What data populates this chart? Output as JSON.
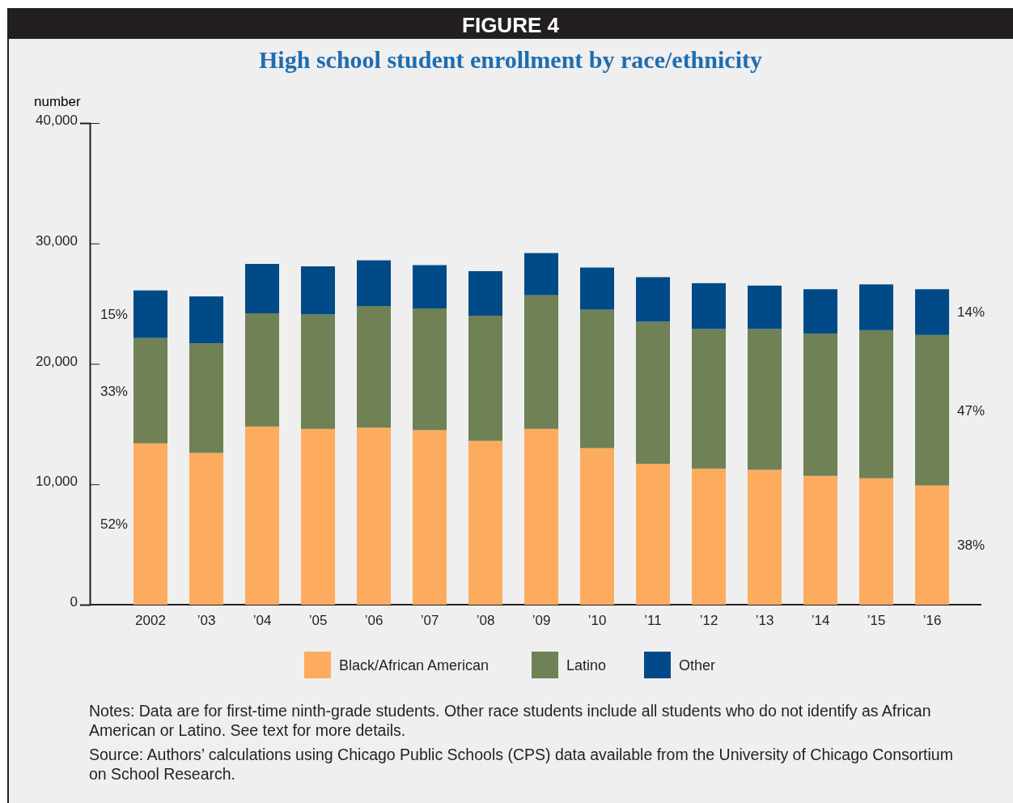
{
  "chart_data": {
    "type": "bar",
    "stacked": true,
    "subtitle": "FIGURE 4",
    "title": "High school student enrollment by race/ethnicity",
    "ylabel": "number",
    "categories": [
      "2002",
      "’03",
      "’04",
      "’05",
      "’06",
      "’07",
      "’08",
      "’09",
      "’10",
      "’11",
      "’12",
      "’13",
      "’14",
      "’15",
      "’16"
    ],
    "series": [
      {
        "name": "Black/African American",
        "color": "#fdac5f",
        "values": [
          13400,
          12600,
          14800,
          14600,
          14700,
          14500,
          13600,
          14600,
          13000,
          11700,
          11300,
          11200,
          10700,
          10500,
          9900
        ]
      },
      {
        "name": "Latino",
        "color": "#6f8155",
        "values": [
          8750,
          9100,
          9400,
          9500,
          10100,
          10100,
          10400,
          11100,
          11500,
          11800,
          11600,
          11700,
          11800,
          12300,
          12500
        ]
      },
      {
        "name": "Other",
        "color": "#004a87",
        "values": [
          3950,
          3900,
          4100,
          4000,
          3800,
          3600,
          3700,
          3500,
          3500,
          3700,
          3800,
          3600,
          3700,
          3800,
          3800
        ]
      }
    ],
    "ylim": [
      0,
      40000
    ],
    "yticks": [
      0,
      {
        "value": 10000,
        "label": "10,000"
      },
      {
        "value": 20000,
        "label": "20,000"
      },
      {
        "value": 30000,
        "label": "30,000"
      },
      {
        "value": 40000,
        "label": "40,000"
      }
    ],
    "grid": false,
    "legend": "bottom",
    "annotations": [
      "15%",
      "33%",
      "52%",
      "14%",
      "47%",
      "38%",
      "Notes: Data are for first-time ninth-grade students. Other race students include all students who do not identify as African American or Latino. See text for more details.",
      "Source: Authors’ calculations using Chicago Public Schools (CPS) data available from the University of Chicago Consortium on School Research."
    ]
  }
}
